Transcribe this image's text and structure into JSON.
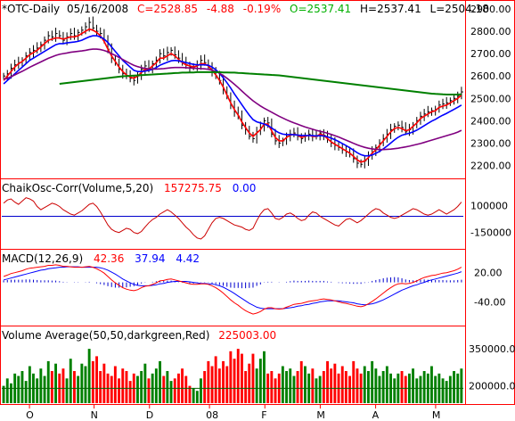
{
  "chart_data": {
    "type": "line",
    "symbol": "*OTC-Daily",
    "date": "05/16/2008",
    "quote": {
      "C": "C=2528.85",
      "change": "-4.88",
      "pct": "-0.19%",
      "O": "O=2537.41",
      "H": "H=2537.41",
      "L": "L=2504.18"
    },
    "x_labels": [
      "O",
      "N",
      "D",
      "08",
      "F",
      "M",
      "A",
      "M"
    ],
    "price_panel": {
      "yticks": [
        "2900.00",
        "2800.00",
        "2700.00",
        "2600.00",
        "2500.00",
        "2400.00",
        "2300.00",
        "2200.00"
      ],
      "ylim": [
        2150,
        2920
      ],
      "close": [
        2600,
        2610,
        2635,
        2650,
        2660,
        2670,
        2690,
        2705,
        2715,
        2725,
        2740,
        2760,
        2780,
        2775,
        2790,
        2780,
        2760,
        2775,
        2790,
        2780,
        2795,
        2805,
        2820,
        2840,
        2815,
        2800,
        2790,
        2760,
        2720,
        2680,
        2660,
        2630,
        2610,
        2600,
        2590,
        2580,
        2600,
        2630,
        2645,
        2630,
        2655,
        2670,
        2700,
        2690,
        2705,
        2715,
        2695,
        2680,
        2660,
        2650,
        2640,
        2640,
        2650,
        2670,
        2660,
        2645,
        2620,
        2600,
        2580,
        2540,
        2510,
        2470,
        2440,
        2420,
        2380,
        2360,
        2330,
        2320,
        2350,
        2370,
        2400,
        2390,
        2340,
        2310,
        2300,
        2310,
        2330,
        2340,
        2345,
        2330,
        2320,
        2330,
        2340,
        2330,
        2330,
        2345,
        2335,
        2315,
        2300,
        2290,
        2280,
        2270,
        2260,
        2250,
        2230,
        2210,
        2205,
        2220,
        2240,
        2260,
        2280,
        2300,
        2320,
        2340,
        2360,
        2375,
        2380,
        2370,
        2350,
        2360,
        2380,
        2400,
        2420,
        2430,
        2440,
        2445,
        2450,
        2470,
        2475,
        2480,
        2490,
        2500,
        2510,
        2528.85
      ],
      "series": [
        {
          "name": "",
          "color": "#ff0000",
          "values": [
            2580,
            2600,
            2620,
            2640,
            2655,
            2665,
            2680,
            2695,
            2705,
            2715,
            2730,
            2745,
            2760,
            2765,
            2770,
            2770,
            2765,
            2770,
            2775,
            2775,
            2780,
            2790,
            2800,
            2810,
            2805,
            2795,
            2780,
            2755,
            2720,
            2690,
            2665,
            2640,
            2620,
            2605,
            2595,
            2590,
            2600,
            2615,
            2630,
            2630,
            2645,
            2660,
            2680,
            2680,
            2690,
            2700,
            2690,
            2675,
            2660,
            2650,
            2645,
            2640,
            2645,
            2655,
            2655,
            2645,
            2625,
            2605,
            2580,
            2550,
            2515,
            2480,
            2450,
            2425,
            2395,
            2370,
            2345,
            2330,
            2345,
            2360,
            2385,
            2385,
            2355,
            2325,
            2310,
            2310,
            2325,
            2335,
            2340,
            2335,
            2325,
            2330,
            2335,
            2330,
            2330,
            2340,
            2335,
            2320,
            2305,
            2295,
            2285,
            2275,
            2265,
            2255,
            2240,
            2225,
            2215,
            2220,
            2235,
            2255,
            2270,
            2290,
            2310,
            2330,
            2350,
            2365,
            2370,
            2365,
            2355,
            2360,
            2375,
            2390,
            2410,
            2420,
            2430,
            2440,
            2445,
            2460,
            2465,
            2470,
            2480,
            2490,
            2500,
            2515
          ]
        },
        {
          "name": "",
          "color": "#0000ff",
          "values": [
            2565,
            2580,
            2595,
            2610,
            2625,
            2640,
            2655,
            2670,
            2680,
            2690,
            2700,
            2710,
            2720,
            2730,
            2740,
            2745,
            2745,
            2748,
            2750,
            2752,
            2755,
            2760,
            2768,
            2775,
            2780,
            2780,
            2775,
            2765,
            2750,
            2730,
            2710,
            2690,
            2670,
            2655,
            2640,
            2625,
            2620,
            2620,
            2622,
            2625,
            2630,
            2638,
            2648,
            2655,
            2662,
            2668,
            2670,
            2668,
            2664,
            2660,
            2656,
            2652,
            2650,
            2650,
            2650,
            2648,
            2640,
            2628,
            2612,
            2592,
            2570,
            2546,
            2520,
            2496,
            2472,
            2448,
            2425,
            2405,
            2395,
            2390,
            2385,
            2378,
            2368,
            2356,
            2346,
            2340,
            2338,
            2338,
            2338,
            2336,
            2334,
            2334,
            2334,
            2333,
            2332,
            2333,
            2332,
            2328,
            2322,
            2315,
            2307,
            2298,
            2289,
            2279,
            2268,
            2257,
            2248,
            2243,
            2243,
            2247,
            2254,
            2263,
            2274,
            2287,
            2300,
            2314,
            2326,
            2335,
            2340,
            2344,
            2350,
            2358,
            2368,
            2378,
            2388,
            2398,
            2406,
            2416,
            2425,
            2433,
            2442,
            2451,
            2460,
            2470
          ]
        },
        {
          "name": "",
          "color": "#800080",
          "values": [
            2585,
            2590,
            2597,
            2605,
            2613,
            2621,
            2630,
            2639,
            2647,
            2655,
            2663,
            2671,
            2679,
            2686,
            2692,
            2697,
            2700,
            2703,
            2706,
            2708,
            2710,
            2712,
            2715,
            2718,
            2720,
            2720,
            2718,
            2714,
            2708,
            2700,
            2692,
            2683,
            2674,
            2665,
            2656,
            2648,
            2642,
            2637,
            2634,
            2632,
            2631,
            2631,
            2632,
            2633,
            2635,
            2637,
            2638,
            2638,
            2638,
            2637,
            2636,
            2635,
            2634,
            2633,
            2632,
            2630,
            2626,
            2620,
            2612,
            2602,
            2590,
            2577,
            2563,
            2548,
            2533,
            2518,
            2503,
            2489,
            2477,
            2466,
            2456,
            2447,
            2438,
            2429,
            2420,
            2412,
            2404,
            2397,
            2390,
            2384,
            2378,
            2372,
            2367,
            2362,
            2357,
            2353,
            2349,
            2344,
            2339,
            2333,
            2327,
            2320,
            2313,
            2306,
            2299,
            2292,
            2286,
            2281,
            2277,
            2274,
            2272,
            2271,
            2271,
            2272,
            2273,
            2275,
            2277,
            2280,
            2283,
            2286,
            2290,
            2294,
            2298,
            2303,
            2308,
            2313,
            2318,
            2323,
            2328,
            2333,
            2338,
            2343,
            2349,
            2357
          ]
        },
        {
          "name": "",
          "color": "#008000",
          "values": [
            null,
            null,
            null,
            null,
            null,
            null,
            null,
            null,
            null,
            null,
            null,
            null,
            null,
            null,
            null,
            2565,
            2567,
            2569,
            2571,
            2573,
            2575,
            2577,
            2579,
            2581,
            2583,
            2585,
            2587,
            2589,
            2591,
            2593,
            2595,
            2597,
            2599,
            2600,
            2601,
            2602,
            2603,
            2604,
            2605,
            2606,
            2607,
            2608,
            2609,
            2610,
            2611,
            2612,
            2613,
            2614,
            2615,
            2615,
            2616,
            2616,
            2617,
            2617,
            2617,
            2617,
            2617,
            2617,
            2617,
            2616,
            2616,
            2615,
            2615,
            2614,
            2613,
            2612,
            2611,
            2610,
            2609,
            2608,
            2607,
            2606,
            2605,
            2604,
            2603,
            2601,
            2599,
            2597,
            2595,
            2593,
            2591,
            2589,
            2587,
            2585,
            2583,
            2581,
            2579,
            2577,
            2575,
            2573,
            2571,
            2569,
            2567,
            2565,
            2563,
            2561,
            2559,
            2557,
            2555,
            2553,
            2551,
            2549,
            2547,
            2545,
            2543,
            2541,
            2539,
            2537,
            2535,
            2533,
            2531,
            2529,
            2527,
            2525,
            2523,
            2521,
            2520,
            2519,
            2518,
            2517,
            2517,
            2517,
            2517,
            2518
          ]
        }
      ]
    },
    "chaikin_panel": {
      "label": "ChaikOsc-Corr(Volume,5,20)",
      "value1": "157275.75",
      "value2": "0.00",
      "yticks": [
        "100000",
        "-150000"
      ],
      "ylim": [
        -300000,
        250000
      ],
      "zero_line": 0,
      "values": [
        120000,
        150000,
        160000,
        130000,
        110000,
        140000,
        170000,
        160000,
        140000,
        90000,
        60000,
        80000,
        100000,
        120000,
        110000,
        90000,
        60000,
        40000,
        20000,
        10000,
        30000,
        50000,
        80000,
        110000,
        120000,
        90000,
        40000,
        -20000,
        -80000,
        -120000,
        -140000,
        -150000,
        -130000,
        -110000,
        -120000,
        -150000,
        -160000,
        -140000,
        -100000,
        -60000,
        -30000,
        -10000,
        20000,
        40000,
        60000,
        40000,
        10000,
        -20000,
        -60000,
        -100000,
        -130000,
        -170000,
        -200000,
        -210000,
        -180000,
        -120000,
        -60000,
        -20000,
        -10000,
        -20000,
        -40000,
        -60000,
        -80000,
        -90000,
        -100000,
        -120000,
        -130000,
        -110000,
        -40000,
        20000,
        60000,
        70000,
        30000,
        -20000,
        -30000,
        -10000,
        20000,
        30000,
        10000,
        -20000,
        -40000,
        -30000,
        10000,
        40000,
        30000,
        0,
        -20000,
        -40000,
        -60000,
        -80000,
        -90000,
        -60000,
        -30000,
        -20000,
        -40000,
        -60000,
        -40000,
        -10000,
        20000,
        50000,
        70000,
        60000,
        30000,
        10000,
        -10000,
        -20000,
        -10000,
        10000,
        30000,
        50000,
        70000,
        60000,
        40000,
        20000,
        10000,
        20000,
        40000,
        60000,
        40000,
        20000,
        40000,
        60000,
        90000,
        130000
      ]
    },
    "macd_panel": {
      "label": "MACD(12,26,9)",
      "macd": "42.36",
      "signal": "37.94",
      "hist": "4.42",
      "yticks": [
        "20.00",
        "-40.00"
      ],
      "ylim": [
        -85,
        45
      ],
      "macd_values": [
        12,
        15,
        18,
        20,
        22,
        24,
        27,
        29,
        30,
        31,
        32,
        33,
        35,
        35,
        36,
        35,
        33,
        33,
        32,
        31,
        31,
        31,
        32,
        33,
        31,
        28,
        24,
        19,
        12,
        5,
        -1,
        -6,
        -11,
        -14,
        -16,
        -17,
        -15,
        -11,
        -8,
        -7,
        -4,
        -1,
        3,
        4,
        6,
        7,
        5,
        3,
        1,
        -1,
        -3,
        -4,
        -4,
        -3,
        -3,
        -4,
        -7,
        -11,
        -16,
        -22,
        -29,
        -36,
        -42,
        -47,
        -53,
        -58,
        -62,
        -65,
        -63,
        -60,
        -55,
        -52,
        -52,
        -54,
        -55,
        -54,
        -51,
        -48,
        -45,
        -44,
        -43,
        -41,
        -39,
        -38,
        -37,
        -35,
        -34,
        -35,
        -36,
        -38,
        -40,
        -42,
        -43,
        -45,
        -47,
        -49,
        -50,
        -48,
        -44,
        -39,
        -34,
        -28,
        -22,
        -16,
        -11,
        -6,
        -3,
        -2,
        -3,
        -2,
        0,
        3,
        7,
        10,
        12,
        14,
        15,
        17,
        19,
        20,
        22,
        24,
        27,
        31
      ],
      "signal_values": [
        5,
        7,
        9,
        11,
        13,
        15,
        17,
        19,
        21,
        23,
        25,
        26,
        28,
        29,
        30,
        31,
        31,
        32,
        32,
        32,
        32,
        31,
        31,
        31,
        31,
        31,
        30,
        28,
        25,
        21,
        17,
        12,
        7,
        3,
        -1,
        -4,
        -6,
        -7,
        -7,
        -7,
        -6,
        -5,
        -3,
        -2,
        0,
        1,
        2,
        2,
        2,
        2,
        1,
        0,
        -1,
        -2,
        -2,
        -3,
        -3,
        -5,
        -7,
        -10,
        -14,
        -18,
        -23,
        -28,
        -33,
        -38,
        -43,
        -47,
        -51,
        -53,
        -54,
        -54,
        -54,
        -54,
        -54,
        -54,
        -53,
        -52,
        -51,
        -49,
        -48,
        -46,
        -45,
        -43,
        -42,
        -40,
        -39,
        -38,
        -38,
        -38,
        -38,
        -39,
        -40,
        -41,
        -42,
        -44,
        -45,
        -46,
        -45,
        -44,
        -42,
        -39,
        -36,
        -32,
        -28,
        -24,
        -20,
        -16,
        -13,
        -10,
        -7,
        -5,
        -2,
        0,
        3,
        5,
        7,
        9,
        11,
        13,
        15,
        17,
        19,
        22
      ]
    },
    "volume_panel": {
      "label": "Volume Average(50,50,darkgreen,Red)",
      "value": "225003.00",
      "yticks": [
        "350000.00",
        "200000.00"
      ],
      "ylim": [
        130000,
        390000
      ],
      "avg_value": 190000,
      "values": [
        200000,
        230000,
        210000,
        250000,
        240000,
        260000,
        220000,
        280000,
        250000,
        230000,
        270000,
        240000,
        300000,
        260000,
        290000,
        250000,
        270000,
        230000,
        310000,
        260000,
        240000,
        290000,
        280000,
        350000,
        300000,
        320000,
        260000,
        290000,
        250000,
        240000,
        280000,
        230000,
        270000,
        260000,
        220000,
        250000,
        240000,
        260000,
        290000,
        230000,
        250000,
        270000,
        300000,
        240000,
        260000,
        220000,
        230000,
        250000,
        270000,
        240000,
        200000,
        190000,
        180000,
        230000,
        260000,
        300000,
        280000,
        320000,
        270000,
        300000,
        280000,
        340000,
        310000,
        350000,
        330000,
        260000,
        290000,
        330000,
        270000,
        310000,
        340000,
        250000,
        260000,
        230000,
        250000,
        280000,
        260000,
        270000,
        240000,
        260000,
        300000,
        280000,
        250000,
        270000,
        230000,
        240000,
        260000,
        300000,
        270000,
        290000,
        250000,
        280000,
        260000,
        240000,
        300000,
        270000,
        250000,
        280000,
        260000,
        300000,
        270000,
        240000,
        260000,
        280000,
        250000,
        230000,
        250000,
        260000,
        240000,
        250000,
        270000,
        230000,
        240000,
        260000,
        250000,
        280000,
        240000,
        250000,
        230000,
        220000,
        240000,
        260000,
        250000,
        270000
      ]
    }
  },
  "colors": {
    "frame": "#ff0000",
    "background": "#ffffff",
    "up": "#008000",
    "down": "#ff0000",
    "hist": "#0000cd"
  }
}
